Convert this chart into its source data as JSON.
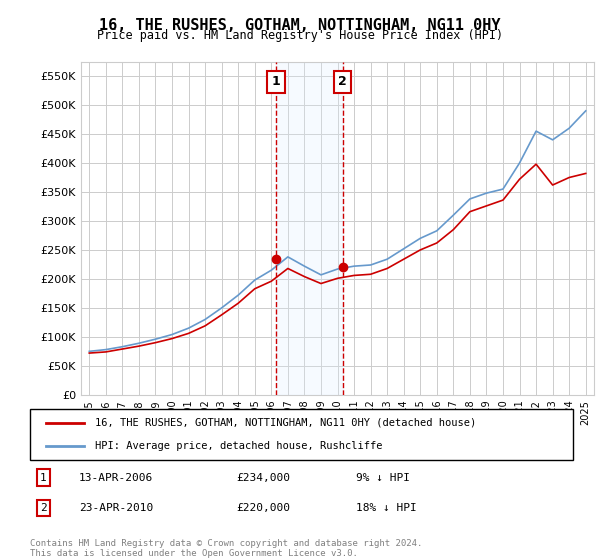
{
  "title": "16, THE RUSHES, GOTHAM, NOTTINGHAM, NG11 0HY",
  "subtitle": "Price paid vs. HM Land Registry's House Price Index (HPI)",
  "ylabel_ticks": [
    0,
    50000,
    100000,
    150000,
    200000,
    250000,
    300000,
    350000,
    400000,
    450000,
    500000,
    550000
  ],
  "ylim": [
    0,
    575000
  ],
  "xlim_start": 1994.5,
  "xlim_end": 2025.5,
  "transaction1": {
    "year": 2006.28,
    "price": 234000,
    "label": "1",
    "date": "13-APR-2006",
    "pct": "9% ↓ HPI"
  },
  "transaction2": {
    "year": 2010.31,
    "price": 220000,
    "label": "2",
    "date": "23-APR-2010",
    "pct": "18% ↓ HPI"
  },
  "legend_line1": "16, THE RUSHES, GOTHAM, NOTTINGHAM, NG11 0HY (detached house)",
  "legend_line2": "HPI: Average price, detached house, Rushcliffe",
  "footer": "Contains HM Land Registry data © Crown copyright and database right 2024.\nThis data is licensed under the Open Government Licence v3.0.",
  "price_color": "#cc0000",
  "hpi_color": "#6699cc",
  "shade_color": "#ddeeff",
  "marker_box_color": "#cc0000",
  "grid_color": "#cccccc",
  "bg_color": "#ffffff",
  "years": [
    1995,
    1996,
    1997,
    1998,
    1999,
    2000,
    2001,
    2002,
    2003,
    2004,
    2005,
    2006,
    2007,
    2008,
    2009,
    2010,
    2011,
    2012,
    2013,
    2014,
    2015,
    2016,
    2017,
    2018,
    2019,
    2020,
    2021,
    2022,
    2023,
    2024,
    2025
  ],
  "hpi_values": [
    75000,
    78000,
    83000,
    89000,
    96000,
    104000,
    115000,
    130000,
    150000,
    172000,
    198000,
    215000,
    238000,
    222000,
    207000,
    217000,
    222000,
    224000,
    234000,
    252000,
    270000,
    283000,
    310000,
    338000,
    348000,
    355000,
    400000,
    455000,
    440000,
    460000,
    490000
  ],
  "price_values": [
    72000,
    74000,
    79000,
    84000,
    90000,
    97000,
    106000,
    119000,
    138000,
    158000,
    183000,
    196000,
    218000,
    204000,
    192000,
    201000,
    206000,
    208000,
    218000,
    234000,
    250000,
    262000,
    285000,
    316000,
    326000,
    336000,
    372000,
    398000,
    362000,
    375000,
    382000
  ]
}
